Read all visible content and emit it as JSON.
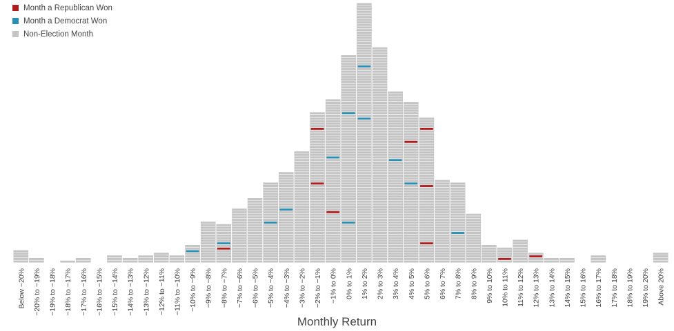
{
  "chart_data": {
    "type": "bar",
    "title": "",
    "xlabel": "Monthly Return",
    "ylabel": "",
    "legend": [
      {
        "name": "Month a Republican Won",
        "color": "#b01c1c"
      },
      {
        "name": "Month a Democrat Won",
        "color": "#2a8fb4"
      },
      {
        "name": "Non-Election Month",
        "color": "#c4c4c4"
      }
    ],
    "categories": [
      "Below −20%",
      "−20% to −19%",
      "−19% to −18%",
      "−18% to −17%",
      "−17% to −16%",
      "−16% to −15%",
      "−15% to −14%",
      "−14% to −13%",
      "−13% to −12%",
      "−12% to −11%",
      "−11% to −10%",
      "−10% to −9%",
      "−9% to −8%",
      "−8% to −7%",
      "−7% to −6%",
      "−6% to −5%",
      "−5% to −4%",
      "−4% to −3%",
      "−3% to −2%",
      "−2% to −1%",
      "−1% to 0%",
      "0% to 1%",
      "1% to 2%",
      "2% to 3%",
      "3% to 4%",
      "4% to 5%",
      "5% to 6%",
      "6% to 7%",
      "7% to 8%",
      "8% to 9%",
      "9% to 10%",
      "10% to 11%",
      "11% to 12%",
      "12% to 13%",
      "13% to 14%",
      "14% to 15%",
      "15% to 16%",
      "16% to 17%",
      "17% to 18%",
      "18% to 19%",
      "19% to 20%",
      "Above 20%"
    ],
    "values": [
      5,
      2,
      0,
      1,
      2,
      0,
      3,
      2,
      3,
      4,
      3,
      7,
      16,
      15,
      21,
      25,
      31,
      35,
      43,
      58,
      63,
      80,
      100,
      83,
      66,
      62,
      56,
      32,
      31,
      19,
      7,
      6,
      9,
      4,
      2,
      2,
      0,
      3,
      0,
      0,
      0,
      4
    ],
    "election_markers": [
      {
        "category": "−10% to −9%",
        "party": "democrat",
        "count_below": 4
      },
      {
        "category": "−8% to −7%",
        "party": "democrat",
        "count_below": 7
      },
      {
        "category": "−8% to −7%",
        "party": "republican",
        "count_below": 5
      },
      {
        "category": "−5% to −4%",
        "party": "democrat",
        "count_below": 15
      },
      {
        "category": "−4% to −3%",
        "party": "democrat",
        "count_below": 20
      },
      {
        "category": "−2% to −1%",
        "party": "republican",
        "count_below": 51
      },
      {
        "category": "−2% to −1%",
        "party": "republican",
        "count_below": 30
      },
      {
        "category": "−1% to 0%",
        "party": "democrat",
        "count_below": 40
      },
      {
        "category": "−1% to 0%",
        "party": "republican",
        "count_below": 19
      },
      {
        "category": "0% to 1%",
        "party": "democrat",
        "count_below": 57
      },
      {
        "category": "0% to 1%",
        "party": "democrat",
        "count_below": 15
      },
      {
        "category": "1% to 2%",
        "party": "democrat",
        "count_below": 75
      },
      {
        "category": "1% to 2%",
        "party": "democrat",
        "count_below": 55
      },
      {
        "category": "3% to 4%",
        "party": "democrat",
        "count_below": 39
      },
      {
        "category": "4% to 5%",
        "party": "republican",
        "count_below": 46
      },
      {
        "category": "4% to 5%",
        "party": "democrat",
        "count_below": 30
      },
      {
        "category": "5% to 6%",
        "party": "republican",
        "count_below": 51
      },
      {
        "category": "5% to 6%",
        "party": "republican",
        "count_below": 29
      },
      {
        "category": "5% to 6%",
        "party": "republican",
        "count_below": 7
      },
      {
        "category": "7% to 8%",
        "party": "democrat",
        "count_below": 11
      },
      {
        "category": "10% to 11%",
        "party": "republican",
        "count_below": 1
      },
      {
        "category": "12% to 13%",
        "party": "republican",
        "count_below": 2
      }
    ],
    "ylim": [
      0,
      100
    ],
    "grid": false,
    "legend_position": "top-left"
  }
}
